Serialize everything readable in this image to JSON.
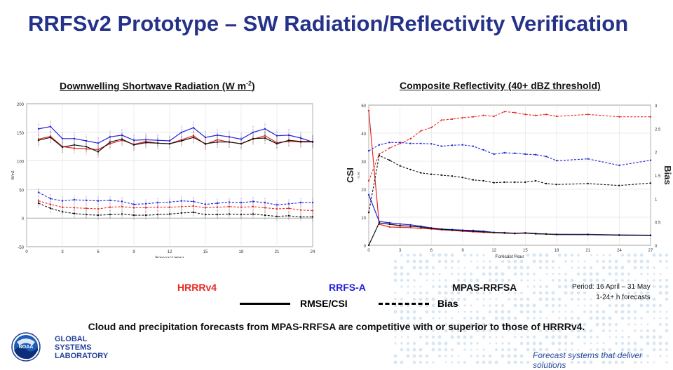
{
  "slide": {
    "title": "RRFSv2 Prototype – SW Radiation/Reflectivity Verification",
    "caption": "Cloud and precipitation forecasts from MPAS-RRFSA are competitive with or superior to those of HRRRv4.",
    "period_line1": "Period: 16 April – 31 May",
    "period_line2": "1-24+ h forecasts",
    "footer": "Forecast systems that deliver solutions",
    "logo_text": "NOAA",
    "gsl_line1": "GLOBAL",
    "gsl_line2": "SYSTEMS",
    "gsl_line3": "LABORATORY"
  },
  "legend": {
    "hrrr": "HRRRv4",
    "rrfs": "RRFS-A",
    "mpas": "MPAS-RRFSA",
    "solid": "RMSE/CSI",
    "dashed": "Bias"
  },
  "colors": {
    "hrrr": "#e8271f",
    "rrfs": "#2323d8",
    "mpas": "#111111",
    "title": "#25328a"
  },
  "chart_data": [
    {
      "type": "line",
      "title": "Downwelling Shortwave Radiation (W m",
      "title_sup": "-2",
      "title_end": ")",
      "xlabel": "Forecast Hour",
      "ylabel": "W/m2",
      "xlim": [
        0,
        24
      ],
      "ylim": [
        -50,
        200
      ],
      "xticks": [
        "0",
        "3",
        "6",
        "9",
        "12",
        "15",
        "18",
        "21",
        "24"
      ],
      "yticks": [
        "-50",
        "0",
        "50",
        "100",
        "150",
        "200"
      ],
      "x": [
        1,
        2,
        3,
        4,
        5,
        6,
        7,
        8,
        9,
        10,
        11,
        12,
        13,
        14,
        15,
        16,
        17,
        18,
        19,
        20,
        21,
        22,
        23,
        24
      ],
      "series": [
        {
          "name": "HRRRv4 RMSE",
          "color": "hrrr",
          "style": "solid",
          "values": [
            138,
            143,
            125,
            122,
            121,
            120,
            130,
            136,
            129,
            134,
            131,
            130,
            137,
            144,
            129,
            137,
            133,
            130,
            138,
            144,
            132,
            134,
            133,
            133
          ]
        },
        {
          "name": "RRFS-A RMSE",
          "color": "rrfs",
          "style": "solid",
          "values": [
            156,
            160,
            139,
            139,
            135,
            131,
            142,
            145,
            136,
            137,
            136,
            135,
            150,
            158,
            141,
            145,
            142,
            138,
            150,
            156,
            144,
            145,
            140,
            133
          ]
        },
        {
          "name": "MPAS-RRFSA RMSE",
          "color": "mpas",
          "style": "solid",
          "values": [
            136,
            141,
            124,
            128,
            125,
            116,
            133,
            138,
            128,
            132,
            131,
            130,
            135,
            141,
            130,
            133,
            133,
            130,
            139,
            140,
            130,
            136,
            134,
            134
          ]
        },
        {
          "name": "HRRRv4 Bias",
          "color": "hrrr",
          "style": "dashed",
          "values": [
            30,
            24,
            19,
            18,
            17,
            16,
            19,
            20,
            18,
            18,
            19,
            19,
            20,
            21,
            18,
            19,
            20,
            19,
            20,
            18,
            16,
            17,
            14,
            13
          ]
        },
        {
          "name": "RRFS-A Bias",
          "color": "rrfs",
          "style": "dashed",
          "values": [
            45,
            34,
            30,
            32,
            31,
            30,
            31,
            29,
            24,
            25,
            27,
            28,
            30,
            29,
            24,
            26,
            28,
            27,
            29,
            27,
            23,
            25,
            27,
            27
          ]
        },
        {
          "name": "MPAS-RRFSA Bias",
          "color": "mpas",
          "style": "dashed",
          "values": [
            26,
            17,
            11,
            8,
            6,
            5,
            6,
            7,
            5,
            5,
            6,
            7,
            9,
            10,
            6,
            6,
            7,
            6,
            7,
            5,
            3,
            4,
            2,
            2
          ]
        }
      ]
    },
    {
      "type": "line",
      "title": "Composite Reflectivity (40+ dBZ threshold)",
      "xlabel": "Forecast Hour",
      "ylabel": "CSI",
      "ylabel_small": "×100",
      "y2label": "Bias",
      "xlim": [
        0,
        27
      ],
      "ylim": [
        0,
        50
      ],
      "y2lim": [
        0,
        3
      ],
      "xticks": [
        "0",
        "3",
        "6",
        "9",
        "12",
        "15",
        "18",
        "21",
        "24",
        "27"
      ],
      "yticks": [
        "0",
        "10",
        "20",
        "30",
        "40",
        "50"
      ],
      "y2ticks": [
        "0",
        "0.5",
        "1",
        "1.5",
        "2",
        "2.5",
        "3"
      ],
      "x": [
        0,
        1,
        2,
        3,
        4,
        5,
        6,
        7,
        8,
        9,
        10,
        11,
        12,
        13,
        14,
        15,
        16,
        17,
        18,
        21,
        24,
        27
      ],
      "series": [
        {
          "name": "HRRRv4 CSI",
          "color": "hrrr",
          "style": "solid",
          "values": [
            48,
            7.5,
            6.5,
            6.4,
            6.3,
            6.0,
            5.8,
            5.5,
            5.3,
            5.0,
            4.8,
            4.6,
            4.5,
            4.3,
            4.2,
            4.3,
            4.1,
            4.0,
            3.9,
            3.8,
            3.6,
            3.5
          ]
        },
        {
          "name": "RRFS-A CSI",
          "color": "rrfs",
          "style": "solid",
          "values": [
            18,
            8.5,
            8.0,
            7.6,
            7.3,
            6.8,
            6.2,
            5.8,
            5.6,
            5.4,
            5.3,
            5.0,
            4.6,
            4.5,
            4.3,
            4.4,
            4.2,
            4.0,
            3.9,
            3.9,
            3.7,
            3.6
          ]
        },
        {
          "name": "MPAS-RRFSA CSI",
          "color": "mpas",
          "style": "solid",
          "values": [
            0,
            8.0,
            7.5,
            7.0,
            6.8,
            6.5,
            6.0,
            5.7,
            5.4,
            5.2,
            5.0,
            4.8,
            4.5,
            4.4,
            4.2,
            4.4,
            4.1,
            4.0,
            3.8,
            3.8,
            3.6,
            3.5
          ]
        },
        {
          "name": "HRRRv4 Bias",
          "color": "hrrr",
          "style": "dashed",
          "values": [
            1.38,
            1.95,
            2.08,
            2.18,
            2.28,
            2.45,
            2.52,
            2.68,
            2.7,
            2.73,
            2.75,
            2.78,
            2.76,
            2.86,
            2.84,
            2.8,
            2.78,
            2.8,
            2.76,
            2.8,
            2.75,
            2.75
          ]
        },
        {
          "name": "RRFS-A Bias",
          "color": "rrfs",
          "style": "dashed",
          "values": [
            2.02,
            2.15,
            2.2,
            2.2,
            2.18,
            2.18,
            2.17,
            2.12,
            2.14,
            2.15,
            2.12,
            2.04,
            1.95,
            1.98,
            1.97,
            1.95,
            1.94,
            1.9,
            1.81,
            1.85,
            1.71,
            1.82
          ]
        },
        {
          "name": "MPAS-RRFSA Bias",
          "color": "mpas",
          "style": "dashed",
          "values": [
            0.7,
            1.92,
            1.82,
            1.7,
            1.62,
            1.55,
            1.52,
            1.5,
            1.48,
            1.45,
            1.4,
            1.38,
            1.34,
            1.35,
            1.35,
            1.35,
            1.38,
            1.32,
            1.3,
            1.32,
            1.28,
            1.33
          ]
        }
      ]
    }
  ]
}
